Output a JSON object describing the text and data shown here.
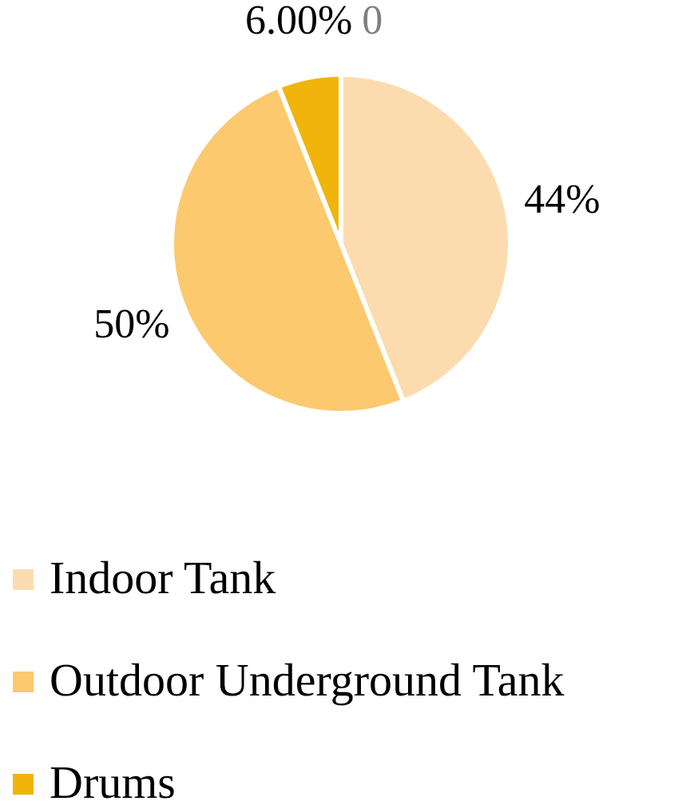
{
  "chart_data": {
    "type": "pie",
    "categories": [
      "Indoor Tank",
      "Outdoor Underground Tank",
      "Drums"
    ],
    "values": [
      44,
      50,
      6
    ],
    "colors": [
      "#fcdcaf",
      "#fcc96f",
      "#f0b40b"
    ],
    "value_labels": [
      "44%",
      "50%",
      "6.00%"
    ],
    "annotations": [
      "0"
    ],
    "legend": "bottom"
  }
}
